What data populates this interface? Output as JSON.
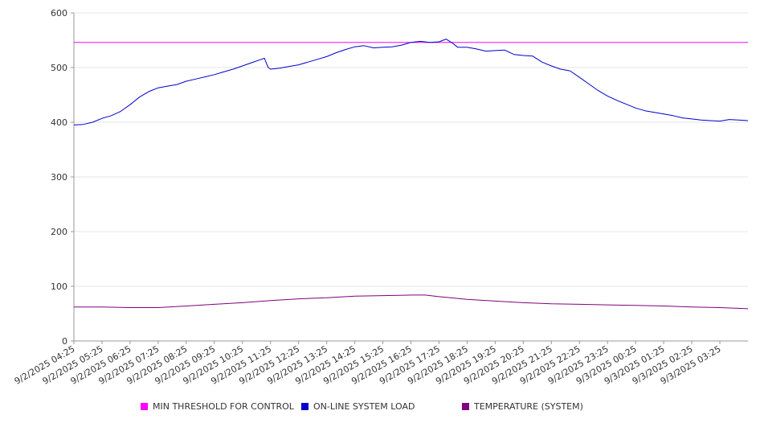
{
  "chart_data": {
    "type": "line",
    "title": "",
    "xlabel": "",
    "ylabel": "",
    "ylim": [
      0,
      600
    ],
    "yticks": [
      0,
      100,
      200,
      300,
      400,
      500,
      600
    ],
    "grid": true,
    "legend_position": "bottom",
    "x_start": "9/2/2025 04:25",
    "x_end": "9/3/2025 04:25",
    "x_tick_labels": [
      "9/2/2025 04:25",
      "9/2/2025 05:25",
      "9/2/2025 06:25",
      "9/2/2025 07:25",
      "9/2/2025 08:25",
      "9/2/2025 09:25",
      "9/2/2025 10:25",
      "9/2/2025 11:25",
      "9/2/2025 12:25",
      "9/2/2025 13:25",
      "9/2/2025 14:25",
      "9/2/2025 15:25",
      "9/2/2025 16:25",
      "9/2/2025 17:25",
      "9/2/2025 18:25",
      "9/2/2025 19:25",
      "9/2/2025 20:25",
      "9/2/2025 21:25",
      "9/2/2025 22:25",
      "9/2/2025 23:25",
      "9/3/2025 00:25",
      "9/3/2025 01:25",
      "9/3/2025 02:25",
      "9/3/2025 03:25"
    ],
    "series": [
      {
        "name": "MIN THRESHOLD FOR CONTROL",
        "color": "#ff00ff",
        "points": [
          [
            "9/2/2025 04:25",
            546
          ],
          [
            "9/3/2025 04:25",
            546
          ]
        ]
      },
      {
        "name": "ON-LINE SYSTEM LOAD",
        "color": "#0000cc",
        "points": [
          [
            "9/2/2025 04:25",
            395
          ],
          [
            "9/2/2025 04:45",
            396
          ],
          [
            "9/2/2025 05:05",
            400
          ],
          [
            "9/2/2025 05:25",
            407
          ],
          [
            "9/2/2025 05:45",
            412
          ],
          [
            "9/2/2025 06:05",
            420
          ],
          [
            "9/2/2025 06:25",
            432
          ],
          [
            "9/2/2025 06:45",
            446
          ],
          [
            "9/2/2025 07:05",
            456
          ],
          [
            "9/2/2025 07:25",
            463
          ],
          [
            "9/2/2025 07:45",
            466
          ],
          [
            "9/2/2025 08:05",
            469
          ],
          [
            "9/2/2025 08:25",
            475
          ],
          [
            "9/2/2025 08:45",
            479
          ],
          [
            "9/2/2025 09:05",
            483
          ],
          [
            "9/2/2025 09:25",
            487
          ],
          [
            "9/2/2025 09:45",
            492
          ],
          [
            "9/2/2025 10:05",
            497
          ],
          [
            "9/2/2025 10:25",
            503
          ],
          [
            "9/2/2025 10:45",
            509
          ],
          [
            "9/2/2025 11:05",
            515
          ],
          [
            "9/2/2025 11:12",
            517
          ],
          [
            "9/2/2025 11:20",
            500
          ],
          [
            "9/2/2025 11:25",
            497
          ],
          [
            "9/2/2025 11:45",
            499
          ],
          [
            "9/2/2025 12:05",
            502
          ],
          [
            "9/2/2025 12:25",
            505
          ],
          [
            "9/2/2025 12:45",
            510
          ],
          [
            "9/2/2025 13:05",
            515
          ],
          [
            "9/2/2025 13:25",
            520
          ],
          [
            "9/2/2025 13:45",
            527
          ],
          [
            "9/2/2025 14:05",
            533
          ],
          [
            "9/2/2025 14:25",
            538
          ],
          [
            "9/2/2025 14:45",
            540
          ],
          [
            "9/2/2025 15:05",
            536
          ],
          [
            "9/2/2025 15:25",
            537
          ],
          [
            "9/2/2025 15:45",
            538
          ],
          [
            "9/2/2025 16:05",
            541
          ],
          [
            "9/2/2025 16:25",
            546
          ],
          [
            "9/2/2025 16:45",
            548
          ],
          [
            "9/2/2025 17:05",
            546
          ],
          [
            "9/2/2025 17:25",
            547
          ],
          [
            "9/2/2025 17:40",
            552
          ],
          [
            "9/2/2025 17:55",
            544
          ],
          [
            "9/2/2025 18:05",
            537
          ],
          [
            "9/2/2025 18:25",
            537
          ],
          [
            "9/2/2025 18:45",
            534
          ],
          [
            "9/2/2025 19:05",
            530
          ],
          [
            "9/2/2025 19:25",
            531
          ],
          [
            "9/2/2025 19:45",
            532
          ],
          [
            "9/2/2025 20:05",
            524
          ],
          [
            "9/2/2025 20:25",
            522
          ],
          [
            "9/2/2025 20:45",
            521
          ],
          [
            "9/2/2025 21:05",
            510
          ],
          [
            "9/2/2025 21:25",
            503
          ],
          [
            "9/2/2025 21:45",
            497
          ],
          [
            "9/2/2025 22:05",
            494
          ],
          [
            "9/2/2025 22:25",
            482
          ],
          [
            "9/2/2025 22:45",
            470
          ],
          [
            "9/2/2025 23:05",
            458
          ],
          [
            "9/2/2025 23:25",
            448
          ],
          [
            "9/2/2025 23:45",
            440
          ],
          [
            "9/3/2025 00:05",
            433
          ],
          [
            "9/3/2025 00:25",
            426
          ],
          [
            "9/3/2025 00:45",
            421
          ],
          [
            "9/3/2025 01:05",
            418
          ],
          [
            "9/3/2025 01:25",
            415
          ],
          [
            "9/3/2025 01:45",
            412
          ],
          [
            "9/3/2025 02:05",
            408
          ],
          [
            "9/3/2025 02:25",
            406
          ],
          [
            "9/3/2025 02:45",
            404
          ],
          [
            "9/3/2025 03:05",
            403
          ],
          [
            "9/3/2025 03:25",
            402
          ],
          [
            "9/3/2025 03:45",
            405
          ],
          [
            "9/3/2025 04:05",
            404
          ],
          [
            "9/3/2025 04:25",
            403
          ]
        ]
      },
      {
        "name": "TEMPERATURE (SYSTEM)",
        "color": "#800080",
        "points": [
          [
            "9/2/2025 04:25",
            62
          ],
          [
            "9/2/2025 05:25",
            62
          ],
          [
            "9/2/2025 06:25",
            61
          ],
          [
            "9/2/2025 07:25",
            61
          ],
          [
            "9/2/2025 08:25",
            64
          ],
          [
            "9/2/2025 09:25",
            67
          ],
          [
            "9/2/2025 10:25",
            70
          ],
          [
            "9/2/2025 11:25",
            74
          ],
          [
            "9/2/2025 12:25",
            77
          ],
          [
            "9/2/2025 13:25",
            79
          ],
          [
            "9/2/2025 14:25",
            82
          ],
          [
            "9/2/2025 15:25",
            83
          ],
          [
            "9/2/2025 16:25",
            84
          ],
          [
            "9/2/2025 16:55",
            84
          ],
          [
            "9/2/2025 17:25",
            81
          ],
          [
            "9/2/2025 18:25",
            76
          ],
          [
            "9/2/2025 19:25",
            73
          ],
          [
            "9/2/2025 20:25",
            70
          ],
          [
            "9/2/2025 21:25",
            68
          ],
          [
            "9/2/2025 22:25",
            67
          ],
          [
            "9/2/2025 23:25",
            66
          ],
          [
            "9/3/2025 00:25",
            65
          ],
          [
            "9/3/2025 01:25",
            64
          ],
          [
            "9/3/2025 02:25",
            62
          ],
          [
            "9/3/2025 03:25",
            61
          ],
          [
            "9/3/2025 04:25",
            59
          ]
        ]
      }
    ]
  }
}
